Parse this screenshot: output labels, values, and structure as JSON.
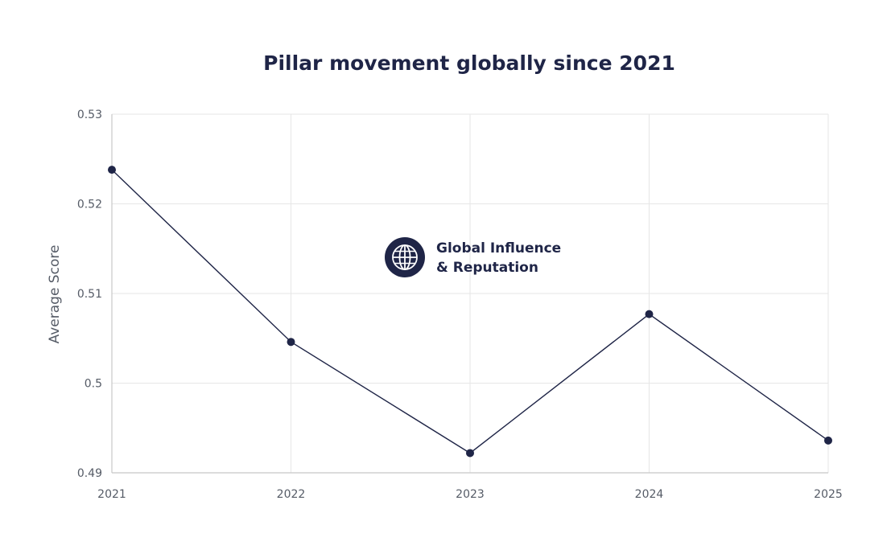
{
  "chart_data": {
    "type": "line",
    "title": "Pillar movement globally since 2021",
    "xlabel": "",
    "ylabel": "Average Score",
    "x": [
      "2021",
      "2022",
      "2023",
      "2024",
      "2025"
    ],
    "series": [
      {
        "name": "Global Influence & Reputation",
        "values": [
          0.5238,
          0.5046,
          0.4922,
          0.5077,
          0.4936
        ]
      }
    ],
    "ylim": [
      0.49,
      0.53
    ],
    "yticks": [
      "0.49",
      "0.5",
      "0.51",
      "0.52",
      "0.53"
    ],
    "grid": true,
    "legend": {
      "placement": "center",
      "lines": [
        "Global Influence",
        "& Reputation"
      ],
      "icon": "globe-icon"
    },
    "colors": {
      "series": "#1f2547",
      "grid": "#e6e6e6",
      "text": "#555b66"
    }
  }
}
